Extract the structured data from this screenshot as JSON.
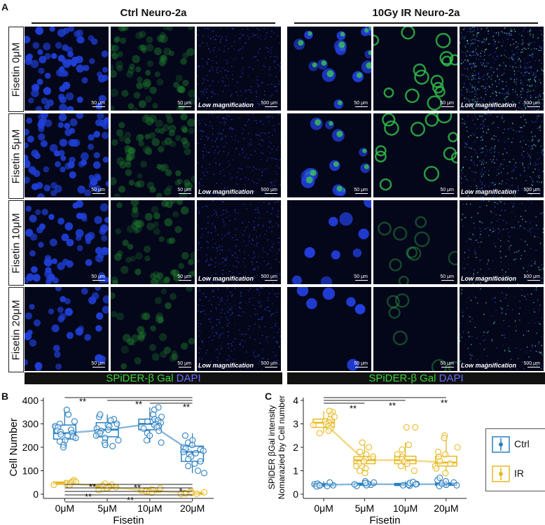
{
  "panel_a": {
    "letter": "A",
    "groups": [
      {
        "title": "Ctrl Neuro-2a"
      },
      {
        "title": "10Gy IR Neuro-2a"
      }
    ],
    "row_labels": [
      "Fisetin 0μM",
      "Fisetin 5μM",
      "Fisetin 10μM",
      "Fisetin 20μM"
    ],
    "scale_small": "50 μm",
    "scale_large": "500 μm",
    "low_mag": "Low magnification",
    "stain_green": "SPiDER-β Gal",
    "stain_blue": "DAPI",
    "colors": {
      "dapi": "#1f3fd6",
      "gal": "#33c24a",
      "bg": "#05071a"
    }
  },
  "panel_b": {
    "letter": "B",
    "chart_data": {
      "type": "box",
      "categories": [
        "0μM",
        "5μM",
        "10μM",
        "20μM"
      ],
      "xlabel": "Fisetin",
      "ylabel": "Cell Number",
      "ylim": [
        0,
        400
      ],
      "yticks": [
        0,
        100,
        200,
        300,
        400
      ],
      "series": [
        {
          "name": "Ctrl",
          "color": "#2a7fc0",
          "medians": [
            260,
            275,
            300,
            180
          ],
          "q1": [
            235,
            245,
            275,
            140
          ],
          "q3": [
            295,
            305,
            320,
            205
          ],
          "whisker_low": [
            195,
            200,
            220,
            90
          ],
          "whisker_high": [
            360,
            340,
            370,
            260
          ],
          "points": [
            [
              340,
              310,
              300,
              290,
              285,
              275,
              270,
              265,
              260,
              255,
              250,
              245,
              240,
              230,
              225,
              210,
              200,
              360
            ],
            [
              330,
              320,
              315,
              300,
              295,
              290,
              280,
              275,
              270,
              265,
              260,
              250,
              240,
              230,
              220,
              210,
              340,
              205
            ],
            [
              360,
              340,
              330,
              320,
              315,
              310,
              305,
              300,
              295,
              290,
              285,
              280,
              270,
              260,
              250,
              230,
              220,
              370
            ],
            [
              250,
              230,
              220,
              210,
              200,
              195,
              190,
              185,
              180,
              175,
              170,
              160,
              150,
              140,
              130,
              120,
              100,
              90
            ]
          ]
        },
        {
          "name": "IR",
          "color": "#e8b923",
          "medians": [
            48,
            30,
            15,
            5
          ],
          "q1": [
            42,
            25,
            12,
            3
          ],
          "q3": [
            52,
            36,
            18,
            8
          ],
          "whisker_low": [
            35,
            18,
            6,
            0
          ],
          "whisker_high": [
            60,
            45,
            25,
            15
          ],
          "points": [
            [
              60,
              55,
              52,
              50,
              48,
              45,
              42,
              40,
              38
            ],
            [
              45,
              40,
              36,
              33,
              30,
              28,
              25,
              22,
              18
            ],
            [
              25,
              20,
              18,
              16,
              15,
              13,
              12,
              10,
              6
            ],
            [
              15,
              10,
              8,
              6,
              5,
              4,
              3,
              2,
              1
            ]
          ]
        }
      ],
      "sig": {
        "top": [
          "**",
          "**",
          "**"
        ],
        "bottom": [
          "**",
          "**",
          "**",
          "**",
          "**",
          "*"
        ]
      }
    }
  },
  "panel_c": {
    "letter": "C",
    "chart_data": {
      "type": "box",
      "categories": [
        "0μM",
        "5μM",
        "10μM",
        "20μM"
      ],
      "xlabel": "Fisetin",
      "ylabel_line1": "SPiDER βGal intensity",
      "ylabel_line2": "Nomarazied by Cell number",
      "ylim": [
        0,
        4
      ],
      "yticks": [
        0,
        1,
        2,
        3,
        4
      ],
      "series": [
        {
          "name": "Ctrl",
          "color": "#2a7fc0",
          "medians": [
            0.4,
            0.43,
            0.42,
            0.43
          ],
          "q1": [
            0.37,
            0.38,
            0.38,
            0.38
          ],
          "q3": [
            0.45,
            0.47,
            0.46,
            0.48
          ],
          "whisker_low": [
            0.3,
            0.3,
            0.3,
            0.3
          ],
          "whisker_high": [
            0.55,
            0.6,
            0.55,
            0.6
          ],
          "points": [
            [
              0.35,
              0.38,
              0.4,
              0.42,
              0.45,
              0.5,
              0.33,
              0.37
            ],
            [
              0.35,
              0.4,
              0.45,
              0.5,
              0.55,
              0.38,
              0.42,
              0.48
            ],
            [
              0.36,
              0.4,
              0.44,
              0.48,
              0.52,
              0.38,
              0.42
            ],
            [
              0.35,
              0.4,
              0.45,
              0.55,
              0.6,
              0.7,
              0.5,
              0.38
            ]
          ]
        },
        {
          "name": "IR",
          "color": "#e8b923",
          "medians": [
            3.05,
            1.45,
            1.45,
            1.35
          ],
          "q1": [
            2.85,
            1.3,
            1.3,
            1.2
          ],
          "q3": [
            3.2,
            1.6,
            1.62,
            1.62
          ],
          "whisker_low": [
            2.6,
            1.0,
            1.0,
            0.9
          ],
          "whisker_high": [
            3.55,
            2.1,
            2.2,
            2.3
          ],
          "points": [
            [
              3.5,
              3.4,
              3.3,
              3.2,
              3.1,
              3.05,
              3.0,
              2.95,
              2.9,
              2.8,
              2.7,
              2.6,
              3.55
            ],
            [
              2.2,
              2.0,
              1.8,
              1.7,
              1.6,
              1.5,
              1.4,
              1.3,
              1.2,
              1.1,
              1.0,
              0.9
            ],
            [
              2.85,
              2.85,
              2.1,
              1.9,
              1.7,
              1.6,
              1.5,
              1.4,
              1.3,
              1.2,
              1.0
            ],
            [
              2.5,
              2.4,
              2.0,
              1.8,
              1.7,
              1.6,
              1.4,
              1.3,
              1.2,
              1.1,
              0.9
            ]
          ]
        }
      ],
      "sig": {
        "top": [
          "**",
          "**",
          "**"
        ]
      }
    }
  },
  "legend": {
    "entries": [
      {
        "label": "Ctrl",
        "color": "#2a7fc0"
      },
      {
        "label": "IR",
        "color": "#e8b923"
      }
    ]
  }
}
